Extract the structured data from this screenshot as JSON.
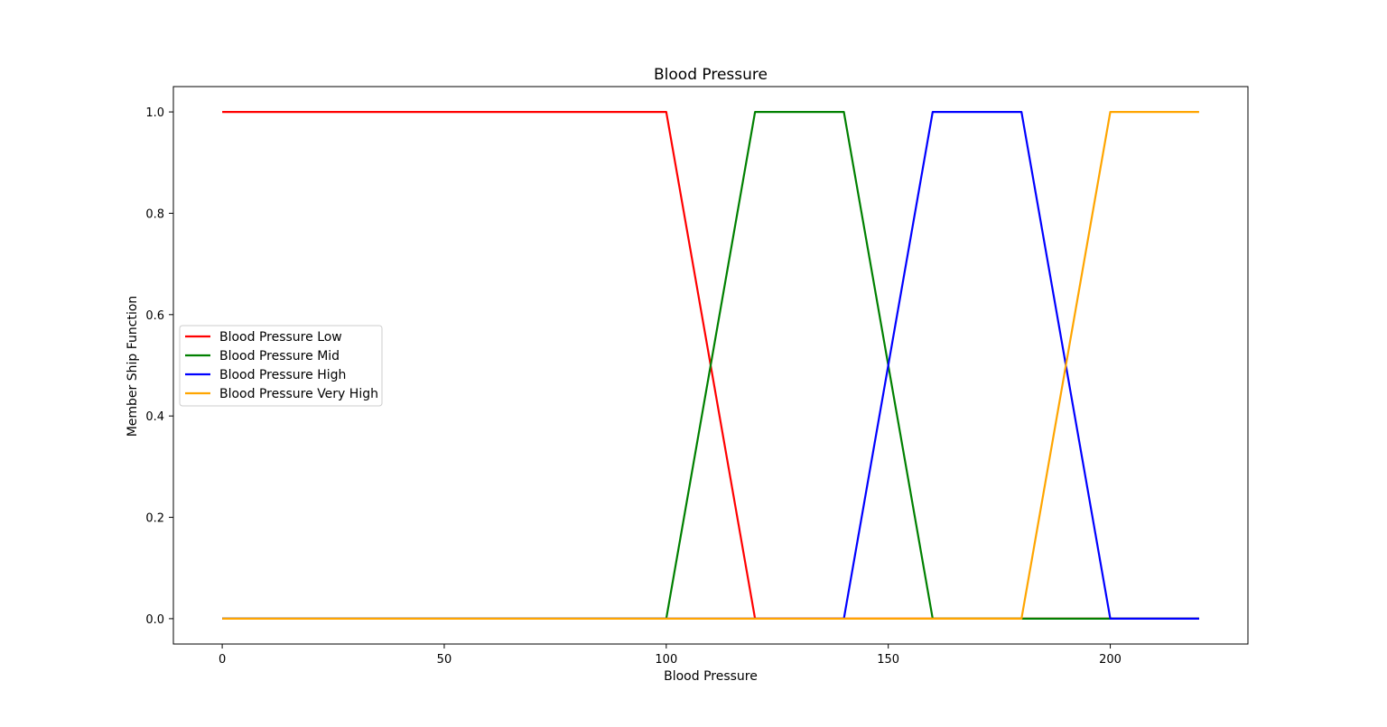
{
  "chart_data": {
    "type": "line",
    "title": "Blood Pressure",
    "xlabel": "Blood Pressure",
    "ylabel": "Member Ship Function",
    "xlim": [
      -11,
      231
    ],
    "ylim": [
      -0.05,
      1.05
    ],
    "x_ticks": [
      0,
      50,
      100,
      150,
      200
    ],
    "x_tick_labels": [
      "0",
      "50",
      "100",
      "150",
      "200"
    ],
    "y_ticks": [
      0.0,
      0.2,
      0.4,
      0.6,
      0.8,
      1.0
    ],
    "y_tick_labels": [
      "0.0",
      "0.2",
      "0.4",
      "0.6",
      "0.8",
      "1.0"
    ],
    "grid": false,
    "legend_position": "center-left",
    "series": [
      {
        "name": "Blood Pressure Low",
        "color": "#ff0000",
        "points": [
          [
            0,
            1
          ],
          [
            100,
            1
          ],
          [
            120,
            0
          ],
          [
            220,
            0
          ]
        ]
      },
      {
        "name": "Blood Pressure Mid",
        "color": "#008000",
        "points": [
          [
            0,
            0
          ],
          [
            100,
            0
          ],
          [
            120,
            1
          ],
          [
            140,
            1
          ],
          [
            160,
            0
          ],
          [
            220,
            0
          ]
        ]
      },
      {
        "name": "Blood Pressure High",
        "color": "#0000ff",
        "points": [
          [
            0,
            0
          ],
          [
            140,
            0
          ],
          [
            160,
            1
          ],
          [
            180,
            1
          ],
          [
            200,
            0
          ],
          [
            220,
            0
          ]
        ]
      },
      {
        "name": "Blood Pressure Very High",
        "color": "#ffa500",
        "points": [
          [
            0,
            0
          ],
          [
            180,
            0
          ],
          [
            200,
            1
          ],
          [
            220,
            1
          ]
        ]
      }
    ]
  }
}
